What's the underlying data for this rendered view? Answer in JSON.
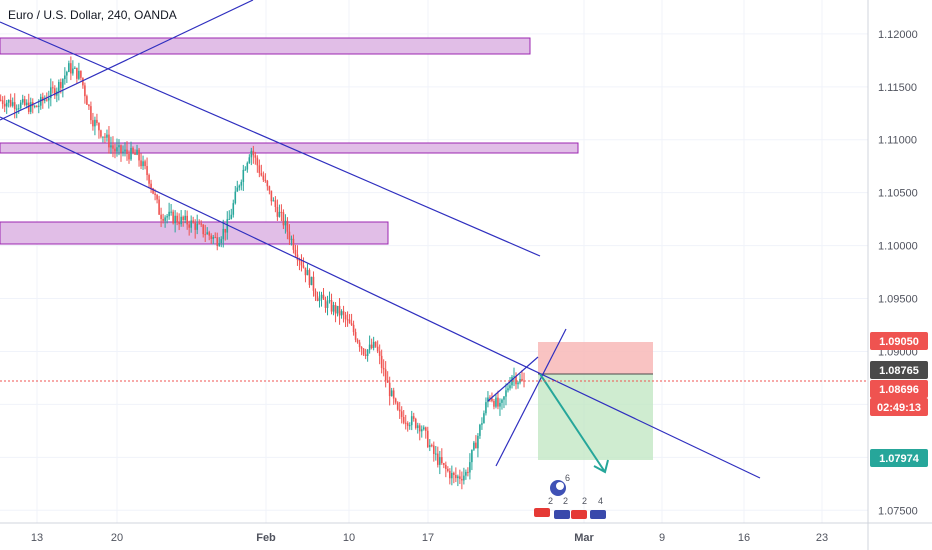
{
  "chart_data": {
    "type": "candlestick",
    "title": "Euro / U.S. Dollar, 240, OANDA",
    "ylim": [
      1.0738,
      1.1232
    ],
    "y_ticks": [
      "1.12000",
      "1.11500",
      "1.11000",
      "1.10500",
      "1.10000",
      "1.09500",
      "1.09000",
      "1.08500",
      "1.08000",
      "1.07500"
    ],
    "x_ticks": [
      {
        "label": "13",
        "bold": false
      },
      {
        "label": "20",
        "bold": false
      },
      {
        "label": "Feb",
        "bold": true
      },
      {
        "label": "10",
        "bold": false
      },
      {
        "label": "17",
        "bold": false
      },
      {
        "label": "Mar",
        "bold": true
      },
      {
        "label": "9",
        "bold": false
      },
      {
        "label": "16",
        "bold": false
      },
      {
        "label": "23",
        "bold": false
      }
    ],
    "price_path": [
      [
        "Jan 13",
        1.113
      ],
      [
        "Jan 15",
        1.115
      ],
      [
        "Jan 16",
        1.1168
      ],
      [
        "Jan 17",
        1.116
      ],
      [
        "Jan 18",
        1.112
      ],
      [
        "Jan 20",
        1.109
      ],
      [
        "Jan 22",
        1.1085
      ],
      [
        "Jan 23",
        1.1065
      ],
      [
        "Jan 24",
        1.103
      ],
      [
        "Jan 27",
        1.102
      ],
      [
        "Jan 29",
        1.1005
      ],
      [
        "Jan 30",
        1.102
      ],
      [
        "Jan 31",
        1.106
      ],
      [
        "Feb 1",
        1.1092
      ],
      [
        "Feb 2",
        1.1065
      ],
      [
        "Feb 3",
        1.104
      ],
      [
        "Feb 4",
        1.102
      ],
      [
        "Feb 5",
        1.0995
      ],
      [
        "Feb 7",
        1.095
      ],
      [
        "Feb 9",
        1.0935
      ],
      [
        "Feb 10",
        1.092
      ],
      [
        "Feb 11",
        1.09
      ],
      [
        "Feb 12",
        1.0905
      ],
      [
        "Feb 13",
        1.087
      ],
      [
        "Feb 14",
        1.084
      ],
      [
        "Feb 16",
        1.083
      ],
      [
        "Feb 17",
        1.0805
      ],
      [
        "Feb 18",
        1.079
      ],
      [
        "Feb 19",
        1.078
      ],
      [
        "Feb 20",
        1.0785
      ],
      [
        "Feb 21",
        1.082
      ],
      [
        "Feb 22",
        1.086
      ],
      [
        "Feb 23",
        1.0845
      ],
      [
        "Feb 24",
        1.0878
      ],
      [
        "Feb 25",
        1.087
      ]
    ],
    "price_tags": [
      {
        "label": "1.09050",
        "color": "#ef5350"
      },
      {
        "label": "1.08765",
        "color": "#4a4a4a"
      },
      {
        "label": "1.08696",
        "color": "#ef5350"
      },
      {
        "label": "02:49:13",
        "color": "#ef5350"
      },
      {
        "label": "1.07974",
        "color": "#26a69a"
      }
    ],
    "events": {
      "count_top": "6",
      "counts_bottom": [
        "2",
        "2",
        "2",
        "4"
      ]
    },
    "colors": {
      "up": "#26a69a",
      "down": "#ef5350",
      "trendline": "#2f2fbf",
      "zone_fill": "#e1bee7",
      "zone_border": "#9c27b0",
      "grid": "#f0f3fa"
    }
  }
}
